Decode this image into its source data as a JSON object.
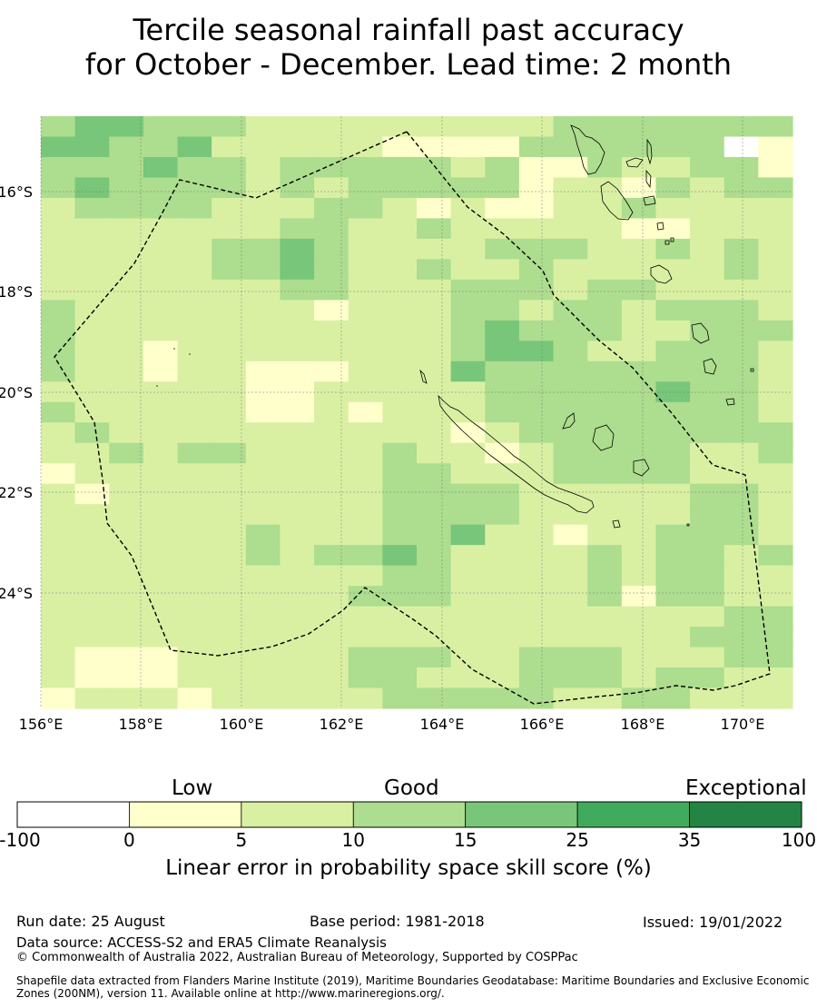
{
  "title": {
    "line1": "Tercile seasonal rainfall past accuracy",
    "line2": "for October - December. Lead time: 2 month"
  },
  "map": {
    "lon_labels": [
      "156°E",
      "158°E",
      "160°E",
      "162°E",
      "164°E",
      "166°E",
      "168°E",
      "170°E"
    ],
    "lat_labels": [
      "16°S",
      "18°S",
      "20°S",
      "22°S",
      "24°S"
    ],
    "boundary_style": "dashed black",
    "coastline_color": "#000000"
  },
  "colorbar": {
    "category_labels": [
      "Low",
      "Good",
      "Exceptional"
    ],
    "ticks": [
      "-100",
      "0",
      "5",
      "10",
      "15",
      "25",
      "35",
      "100"
    ],
    "colors": [
      "#ffffff",
      "#ffffcc",
      "#d9f0a3",
      "#addd8e",
      "#78c679",
      "#41ab5d",
      "#238443"
    ],
    "title": "Linear error in probability space skill score (%)"
  },
  "footer": {
    "run_date": "Run date: 25 August",
    "base_period": "Base period: 1981-2018",
    "issued": "Issued: 19/01/2022",
    "data_source": "Data source: ACCESS-S2 and ERA5 Climate Reanalysis",
    "copyright": "© Commonwealth of Australia 2022, Australian Bureau of Meteorology, Supported by COSPPac",
    "shapefile_note": "Shapefile data extracted from Flanders Marine Institute (2019), Maritime Boundaries Geodatabase: Maritime Boundaries and Exclusive Economic Zones (200NM), version 11. Available online at http://www.marineregions.org/."
  },
  "grid": {
    "legend_classes": "0=white(<0), 1=0-5, 2=5-10, 3=10-15, 4=15-25",
    "rows": [
      "3443332222222223333333",
      "4433422222111133333301",
      "3334332333332311322331",
      "3433332323333312213233",
      "2333322233212112232222",
      "2222222332232222211222",
      "2222233432222333223232",
      "2222233432232232222232",
      "2222222332223332332222",
      "3222222212223323323332",
      "3222222222223433322333",
      "3221222222223443223332",
      "3221221112224333333332",
      "2222221122222333334332",
      "3222221121222333333332",
      "2322222222221233333333",
      "2232332222322123333223",
      "1222222222332223333222",
      "2122222222333322222332",
      "2222222222333322222332",
      "2222223222334221223332",
      "2222223233432222323323",
      "2222222222332222323322",
      "2222222223332222313322",
      "2222222222222222222233",
      "2222222222222222222333",
      "2111222223332233322233",
      "2111222223322233323322",
      "1222122222333332233222"
    ]
  }
}
